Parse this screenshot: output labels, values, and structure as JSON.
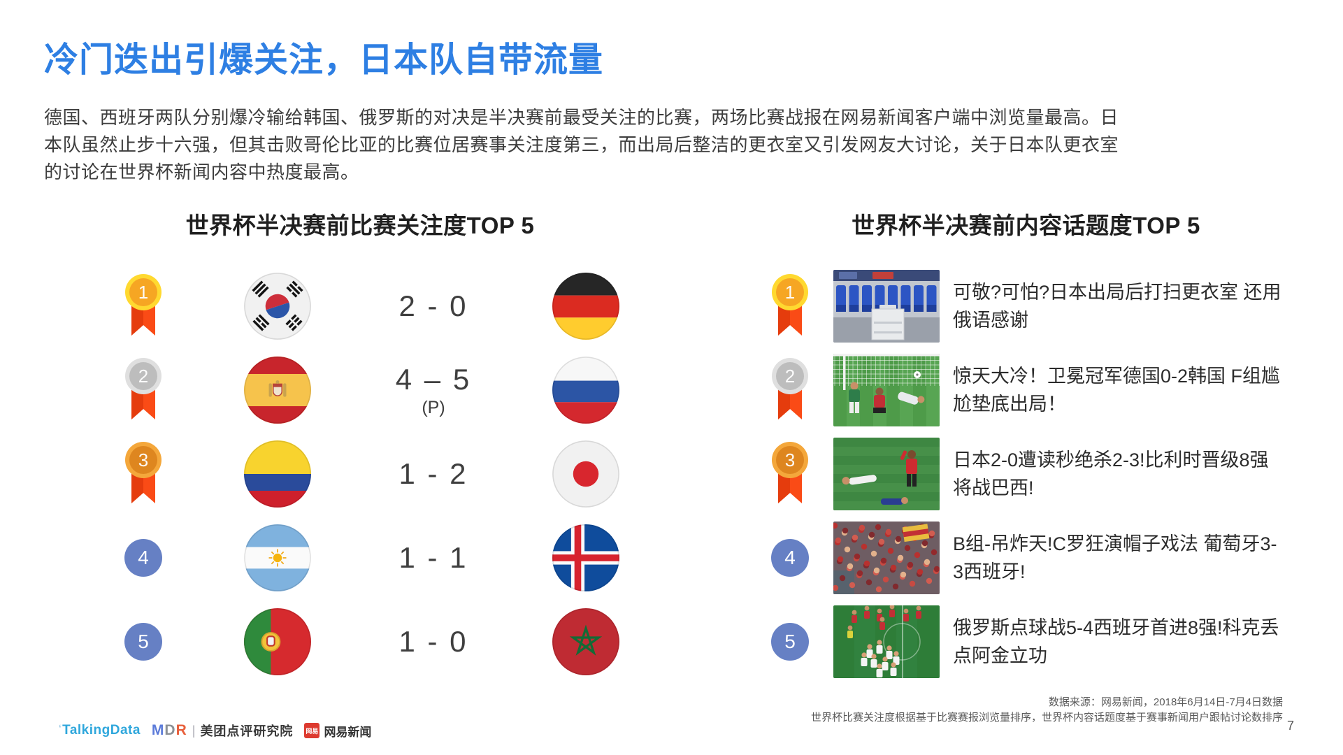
{
  "slide": {
    "title": "冷门迭出引爆关注，日本队自带流量",
    "intro_lines": [
      "德国、西班牙两队分别爆冷输给韩国、俄罗斯的对决是半决赛前最受关注的比赛，两场比赛战报在网易新闻客户端中浏览量最高。日",
      "本队虽然止步十六强，但其击败哥伦比亚的比赛位居赛事关注度第三，而出局后整洁的更衣室又引发网友大讨论，关于日本队更衣室",
      "的讨论在世界杯新闻内容中热度最高。"
    ]
  },
  "match_panel": {
    "heading": "世界杯半决赛前比赛关注度TOP 5",
    "rows": [
      {
        "rank": "1",
        "medal": "gold",
        "home_flag": "south-korea",
        "score": "2 - 0",
        "score_note": "",
        "away_flag": "germany"
      },
      {
        "rank": "2",
        "medal": "silver",
        "home_flag": "spain",
        "score": "4 – 5",
        "score_note": "(P)",
        "away_flag": "russia"
      },
      {
        "rank": "3",
        "medal": "bronze",
        "home_flag": "colombia",
        "score": "1 - 2",
        "score_note": "",
        "away_flag": "japan"
      },
      {
        "rank": "4",
        "medal": "plain",
        "home_flag": "argentina",
        "score": "1 - 1",
        "score_note": "",
        "away_flag": "iceland"
      },
      {
        "rank": "5",
        "medal": "plain",
        "home_flag": "portugal",
        "score": "1 - 0",
        "score_note": "",
        "away_flag": "morocco"
      }
    ]
  },
  "topic_panel": {
    "heading": "世界杯半决赛前内容话题度TOP 5",
    "rows": [
      {
        "rank": "1",
        "medal": "gold",
        "photo": "locker-room",
        "headline": "可敬?可怕?日本出局后打扫更衣室 还用俄语感谢"
      },
      {
        "rank": "2",
        "medal": "silver",
        "photo": "germany-korea-goal",
        "headline": "惊天大冷！卫冕冠军德国0-2韩国 F组尴尬垫底出局！"
      },
      {
        "rank": "3",
        "medal": "bronze",
        "photo": "japan-belgium",
        "headline": "日本2-0遭读秒绝杀2-3!比利时晋级8强将战巴西!"
      },
      {
        "rank": "4",
        "medal": "plain",
        "photo": "spain-fans",
        "headline": "B组-吊炸天!C罗狂演帽子戏法 葡萄牙3-3西班牙!"
      },
      {
        "rank": "5",
        "medal": "plain",
        "photo": "russia-celebration",
        "headline": "俄罗斯点球战5-4西班牙首进8强!科克丢点阿金立功"
      }
    ]
  },
  "footer": {
    "source_line1": "数据来源：网易新闻，2018年6月14日-7月4日数据",
    "source_line2": "世界杯比赛关注度根据基于比赛赛报浏览量排序，世界杯内容话题度基于赛事新闻用户跟帖讨论数排序",
    "page_number": "7",
    "logos": {
      "talkingdata": "TalkingData",
      "mdr_letters": "MDR",
      "mdr_name": "美团点评研究院",
      "netease_badge": "网易",
      "netease_name": "网易新闻"
    }
  },
  "colors": {
    "title_blue": "#2E7FE3",
    "medal_gold_outer": "#FFD930",
    "medal_gold_inner": "#F6A623",
    "medal_silver_outer": "#DFDFDF",
    "medal_silver_inner": "#BDBDBD",
    "medal_bronze_outer": "#F4A73B",
    "medal_bronze_inner": "#DE861F",
    "ribbon_red": "#FA4B16",
    "rank_circle_blue": "#6680C4"
  }
}
